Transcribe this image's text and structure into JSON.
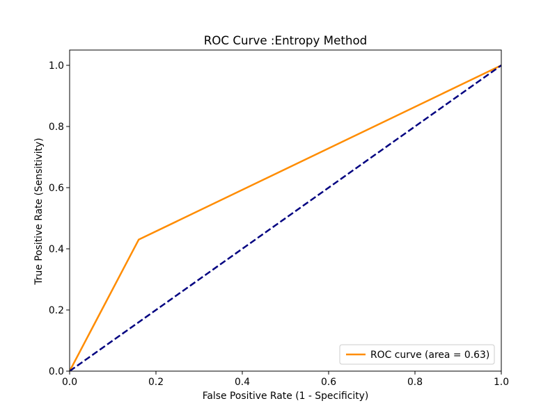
{
  "chart_data": {
    "type": "line",
    "title": "ROC Curve :Entropy Method",
    "xlabel": "False Positive Rate (1 - Specificity)",
    "ylabel": "True Positive Rate (Sensitivity)",
    "xlim": [
      0.0,
      1.0
    ],
    "ylim": [
      0.0,
      1.05
    ],
    "xticks": [
      0.0,
      0.2,
      0.4,
      0.6,
      0.8,
      1.0
    ],
    "yticks": [
      0.0,
      0.2,
      0.4,
      0.6,
      0.8,
      1.0
    ],
    "xtick_labels": [
      "0.0",
      "0.2",
      "0.4",
      "0.6",
      "0.8",
      "1.0"
    ],
    "ytick_labels": [
      "0.0",
      "0.2",
      "0.4",
      "0.6",
      "0.8",
      "1.0"
    ],
    "grid": false,
    "legend_position": "lower-right",
    "series": [
      {
        "name": "ROC curve (area = 0.63)",
        "color": "#ff8c00",
        "line_style": "solid",
        "x": [
          0.0,
          0.16,
          1.0
        ],
        "y": [
          0.0,
          0.43,
          1.0
        ]
      },
      {
        "color": "#000080",
        "line_style": "dashed",
        "x": [
          0.0,
          1.0
        ],
        "y": [
          0.0,
          1.0
        ]
      }
    ]
  }
}
